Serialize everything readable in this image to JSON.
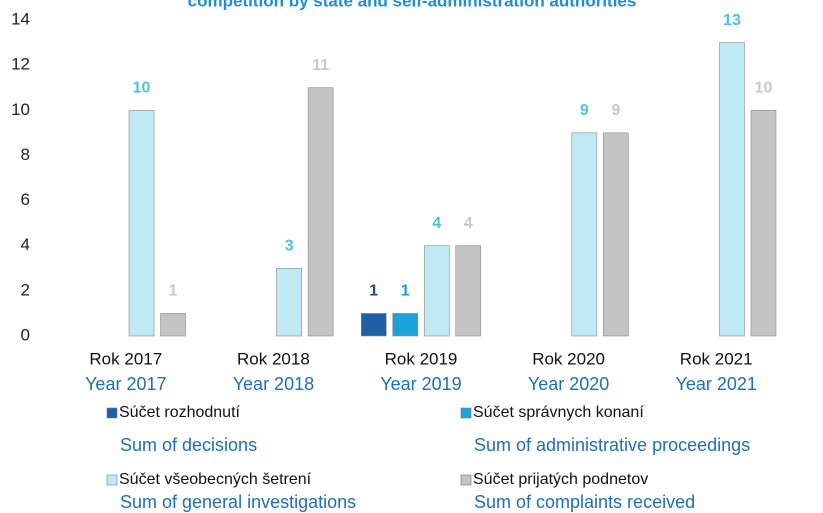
{
  "chart_data": {
    "type": "bar",
    "title": "competition by state and self-administration authorities",
    "categories": [
      "Rok 2017",
      "Rok 2018",
      "Rok 2019",
      "Rok 2020",
      "Rok 2021"
    ],
    "category_translations": [
      "Year 2017",
      "Year 2018",
      "Year 2019",
      "Year 2020",
      "Year 2021"
    ],
    "series": [
      {
        "name": "Súčet rozhodnutí",
        "translation": "Sum of decisions",
        "color": "#1f5fa8",
        "label_color": "#1f4e8c",
        "values": [
          null,
          null,
          1,
          null,
          null
        ]
      },
      {
        "name": "Súčet správnych konaní",
        "translation": "Sum of administrative proceedings",
        "color": "#1aa3dc",
        "label_color": "#1a9ad6",
        "values": [
          null,
          null,
          1,
          null,
          null
        ]
      },
      {
        "name": "Súčet všeobecných šetrení",
        "translation": "Sum of general investigations",
        "color": "#bfeaf3",
        "label_color": "#4fc3dc",
        "values": [
          10,
          3,
          4,
          9,
          13
        ]
      },
      {
        "name": "Súčet prijatých podnetov",
        "translation": "Sum of complaints received",
        "color": "#c4c4c4",
        "label_color": "#c8c8c8",
        "values": [
          1,
          11,
          4,
          9,
          10
        ]
      }
    ],
    "ylim": [
      0,
      14
    ],
    "yticks": [
      0,
      2,
      4,
      6,
      8,
      10,
      12,
      14
    ],
    "grid": false
  }
}
